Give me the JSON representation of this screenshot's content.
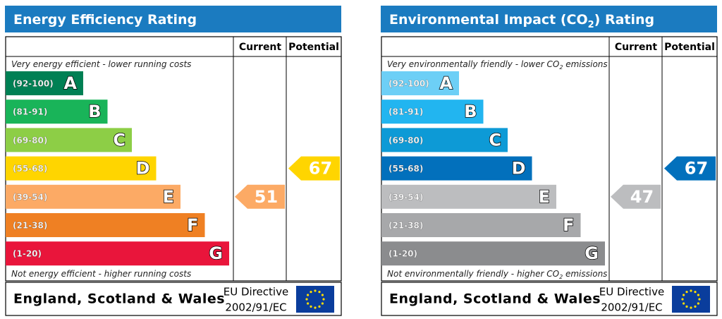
{
  "panels": [
    {
      "title_parts": [
        "Energy Efficiency Rating"
      ],
      "col_current": "Current",
      "col_potential": "Potential",
      "top_note_parts": [
        "Very energy efficient - lower running costs"
      ],
      "bands": [
        {
          "range": "(92-100)",
          "letter": "A",
          "color": "#008054"
        },
        {
          "range": "(81-91)",
          "letter": "B",
          "color": "#19b459"
        },
        {
          "range": "(69-80)",
          "letter": "C",
          "color": "#8dce46"
        },
        {
          "range": "(55-68)",
          "letter": "D",
          "color": "#ffd500"
        },
        {
          "range": "(39-54)",
          "letter": "E",
          "color": "#fcaa65"
        },
        {
          "range": "(21-38)",
          "letter": "F",
          "color": "#ef8023"
        },
        {
          "range": "(1-20)",
          "letter": "G",
          "color": "#e9153b"
        }
      ],
      "bottom_note_parts": [
        "Not energy efficient - higher running costs"
      ],
      "current": 51,
      "potential": 67,
      "region": "England, Scotland & Wales",
      "directive": [
        "EU Directive",
        "2002/91/EC"
      ]
    },
    {
      "title_parts": [
        "Environmental Impact (CO",
        "2",
        ") Rating"
      ],
      "col_current": "Current",
      "col_potential": "Potential",
      "top_note_parts": [
        "Very environmentally friendly - lower CO",
        "2",
        " emissions"
      ],
      "bands": [
        {
          "range": "(92-100)",
          "letter": "A",
          "color": "#6dcff6"
        },
        {
          "range": "(81-91)",
          "letter": "B",
          "color": "#22b5f0"
        },
        {
          "range": "(69-80)",
          "letter": "C",
          "color": "#0d9ad6"
        },
        {
          "range": "(55-68)",
          "letter": "D",
          "color": "#0270bc"
        },
        {
          "range": "(39-54)",
          "letter": "E",
          "color": "#bcbdbf"
        },
        {
          "range": "(21-38)",
          "letter": "F",
          "color": "#a7a8aa"
        },
        {
          "range": "(1-20)",
          "letter": "G",
          "color": "#8b8c8e"
        }
      ],
      "bottom_note_parts": [
        "Not environmentally friendly - higher CO",
        "2",
        " emissions"
      ],
      "current": 47,
      "potential": 67,
      "region": "England, Scotland & Wales",
      "directive": [
        "EU Directive",
        "2002/91/EC"
      ]
    }
  ]
}
